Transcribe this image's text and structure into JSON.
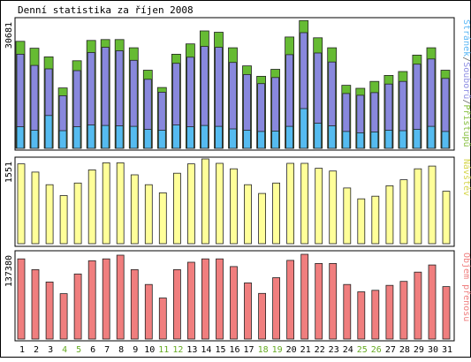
{
  "chart_data": [
    {
      "type": "bar",
      "title": "Denní statistika za říjen 2008",
      "ylabel_parts": [
        {
          "text": "Stránek",
          "color": "#5bb7f5"
        },
        {
          "text": "/",
          "color": "#666666"
        },
        {
          "text": "Souborů",
          "color": "#8f8fe3"
        },
        {
          "text": "/",
          "color": "#666666"
        },
        {
          "text": "Přístupů",
          "color": "#86bf3f"
        }
      ],
      "ymax_label": "30681",
      "ylim": [
        0,
        30681
      ],
      "x": [
        "1",
        "2",
        "3",
        "4",
        "5",
        "6",
        "7",
        "8",
        "9",
        "10",
        "11",
        "12",
        "13",
        "14",
        "15",
        "16",
        "17",
        "18",
        "19",
        "20",
        "21",
        "22",
        "23",
        "24",
        "25",
        "26",
        "27",
        "28",
        "29",
        "30",
        "31"
      ],
      "weekend_days": [
        "4",
        "5",
        "11",
        "12",
        "18",
        "19",
        "25",
        "26"
      ],
      "series": [
        {
          "name": "Přístupů",
          "color": "#66bb33",
          "values": [
            24800,
            23200,
            21200,
            14000,
            20300,
            25000,
            25200,
            25200,
            23300,
            18100,
            14100,
            21800,
            24200,
            27200,
            26900,
            23300,
            19100,
            16700,
            18300,
            25800,
            29600,
            25600,
            23300,
            14600,
            13900,
            15500,
            16900,
            17800,
            21600,
            23300,
            18100
          ]
        },
        {
          "name": "Souborů",
          "color": "#8888dd",
          "values": [
            21800,
            19200,
            18400,
            12200,
            18000,
            22200,
            23400,
            22600,
            20400,
            16000,
            13000,
            19700,
            21100,
            23600,
            23400,
            19900,
            17100,
            15000,
            16400,
            21700,
            26800,
            22100,
            20000,
            12700,
            12300,
            12900,
            14900,
            15500,
            19500,
            20700,
            16200
          ]
        },
        {
          "name": "Stránek",
          "color": "#55bbf0",
          "values": [
            5000,
            4200,
            7600,
            4100,
            5000,
            5400,
            5300,
            5200,
            5100,
            4400,
            4200,
            5400,
            5000,
            5300,
            5100,
            4500,
            4200,
            3900,
            4000,
            5100,
            9200,
            5800,
            5200,
            3900,
            3600,
            3800,
            4200,
            4100,
            4400,
            5100,
            3900
          ]
        }
      ]
    },
    {
      "type": "bar",
      "ylabel": "Návštěv",
      "ylabel_color": "#d6d64a",
      "ymax_label": "1551",
      "ylim": [
        0,
        1551
      ],
      "series": [
        {
          "name": "Návštěv",
          "color": "#ffff99",
          "values": [
            1460,
            1310,
            1080,
            880,
            1110,
            1350,
            1480,
            1480,
            1260,
            1080,
            930,
            1290,
            1460,
            1551,
            1470,
            1370,
            1080,
            920,
            1110,
            1470,
            1470,
            1380,
            1330,
            1020,
            820,
            870,
            1060,
            1170,
            1370,
            1420,
            960
          ]
        }
      ]
    },
    {
      "type": "bar",
      "ylabel": "Objem přenosu",
      "ylabel_color": "#f08080",
      "ymax_label": "137380",
      "ylim": [
        0,
        137380
      ],
      "series": [
        {
          "name": "Objem přenosu",
          "color": "#f07e7e",
          "values": [
            130000,
            112500,
            92500,
            73500,
            105500,
            127000,
            130000,
            136000,
            112500,
            88500,
            66500,
            112500,
            124500,
            130000,
            130000,
            117500,
            91000,
            74000,
            99500,
            127500,
            137380,
            122500,
            122500,
            88500,
            76500,
            79000,
            87000,
            93500,
            108500,
            120000,
            85000
          ]
        }
      ]
    }
  ]
}
